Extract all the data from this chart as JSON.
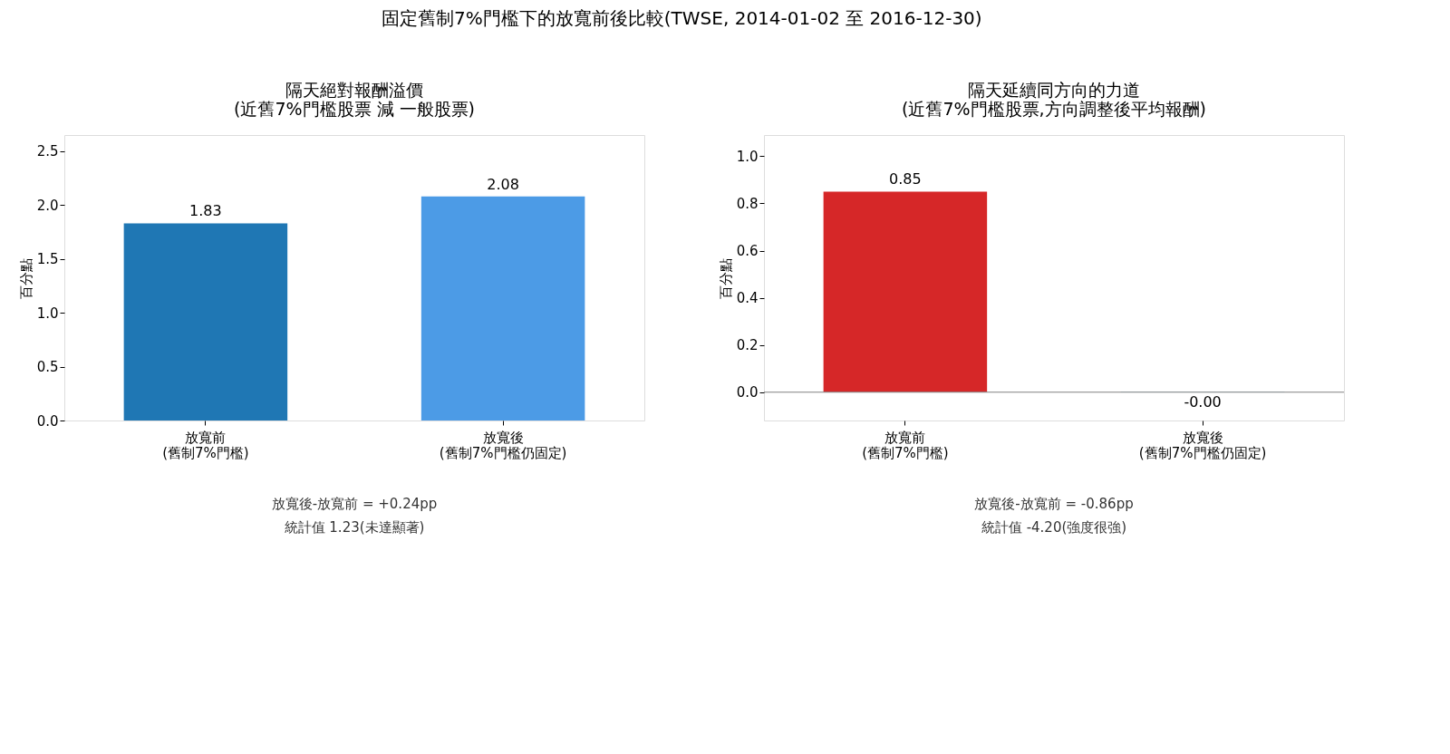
{
  "chart_data": [
    {
      "type": "other",
      "title": "固定舊制7%門檻下的放寬前後比較(TWSE, 2014-01-02 至 2016-12-30)"
    },
    {
      "type": "bar",
      "title": [
        "隔天絕對報酬溢價",
        "(近舊7%門檻股票 減 一般股票)"
      ],
      "ylabel": "百分點",
      "categories": [
        "放寬前\n(舊制7%門檻)",
        "放寬後\n(舊制7%門檻仍固定)"
      ],
      "values": [
        1.83,
        2.08
      ],
      "colors": [
        "#1f77b4",
        "#4c9be6"
      ],
      "value_labels": [
        "1.83",
        "2.08"
      ],
      "ylim": [
        0,
        2.65
      ],
      "yticks": [
        {
          "value": 0,
          "label": "0.0"
        },
        0.5,
        {
          "value": 1,
          "label": "1.0"
        },
        1.5,
        {
          "value": 2,
          "label": "2.0"
        },
        2.5
      ],
      "grid": false,
      "legend": false,
      "annotations": [
        "放寬後-放寬前 = +0.24pp",
        "統計值 1.23(未達顯著)"
      ]
    },
    {
      "type": "bar",
      "title": [
        "隔天延續同方向的力道",
        "(近舊7%門檻股票,方向調整後平均報酬)"
      ],
      "ylabel": "百分點",
      "categories": [
        "放寬前\n(舊制7%門檻)",
        "放寬後\n(舊制7%門檻仍固定)"
      ],
      "values": [
        0.85,
        -0.001
      ],
      "colors": [
        "#d62728",
        "#1f77b4"
      ],
      "value_labels": [
        "0.85",
        "-0.00"
      ],
      "ylim": [
        -0.12,
        1.09
      ],
      "yticks": [
        {
          "value": 0,
          "label": "0.0"
        },
        0.2,
        0.4,
        0.6,
        0.8,
        {
          "value": 1,
          "label": "1.0"
        }
      ],
      "grid": false,
      "legend": false,
      "ref_lines": [
        {
          "axis": "y",
          "value": 0,
          "color": "#808080"
        }
      ],
      "annotations": [
        "放寬後-放寬前 = -0.86pp",
        "統計值 -4.20(強度很強)"
      ]
    }
  ]
}
